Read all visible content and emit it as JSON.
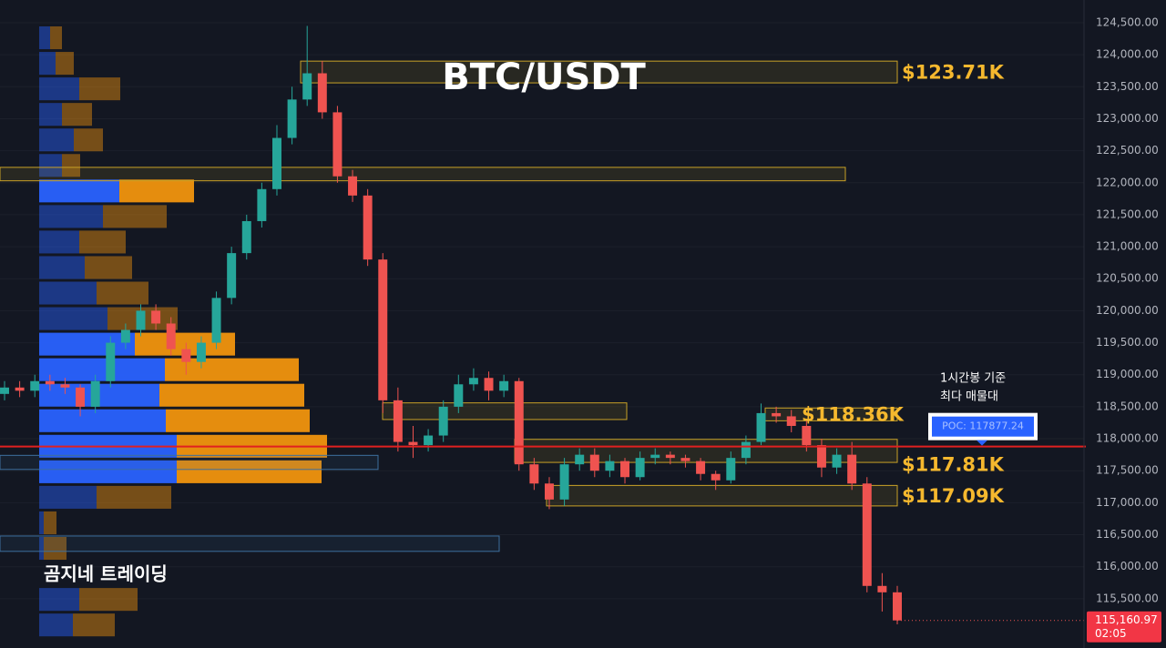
{
  "chart_data": {
    "type": "candlestick",
    "title": "BTC/USDT",
    "watermark": "곰지네 트레이딩",
    "ylim": [
      114730,
      124855
    ],
    "yticks": [
      {
        "value": 115500,
        "label": "115,500.00"
      },
      {
        "value": 116000,
        "label": "116,000.00"
      },
      {
        "value": 116500,
        "label": "116,500.00"
      },
      {
        "value": 117000,
        "label": "117,000.00"
      },
      {
        "value": 117500,
        "label": "117,500.00"
      },
      {
        "value": 118000,
        "label": "118,000.00"
      },
      {
        "value": 118500,
        "label": "118,500.00"
      },
      {
        "value": 119000,
        "label": "119,000.00"
      },
      {
        "value": 119500,
        "label": "119,500.00"
      },
      {
        "value": 120000,
        "label": "120,000.00"
      },
      {
        "value": 120500,
        "label": "120,500.00"
      },
      {
        "value": 121000,
        "label": "121,000.00"
      },
      {
        "value": 121500,
        "label": "121,500.00"
      },
      {
        "value": 122000,
        "label": "122,000.00"
      },
      {
        "value": 122500,
        "label": "122,500.00"
      },
      {
        "value": 123000,
        "label": "123,000.00"
      },
      {
        "value": 123500,
        "label": "123,500.00"
      },
      {
        "value": 124000,
        "label": "124,000.00"
      },
      {
        "value": 124500,
        "label": "124,500.00"
      }
    ],
    "up_color": "#26a69a",
    "down_color": "#ef5350",
    "candles": [
      [
        118700,
        118900,
        118600,
        118800
      ],
      [
        118800,
        118900,
        118650,
        118750
      ],
      [
        118750,
        119000,
        118650,
        118900
      ],
      [
        118900,
        119000,
        118750,
        118850
      ],
      [
        118850,
        118950,
        118700,
        118800
      ],
      [
        118800,
        118850,
        118350,
        118500
      ],
      [
        118500,
        119000,
        118400,
        118900
      ],
      [
        118900,
        119600,
        118800,
        119500
      ],
      [
        119500,
        119800,
        119400,
        119700
      ],
      [
        119700,
        120100,
        119600,
        120000
      ],
      [
        120000,
        120100,
        119700,
        119800
      ],
      [
        119800,
        119900,
        119300,
        119400
      ],
      [
        119400,
        119500,
        119000,
        119200
      ],
      [
        119200,
        119600,
        119100,
        119500
      ],
      [
        119500,
        120300,
        119400,
        120200
      ],
      [
        120200,
        121000,
        120100,
        120900
      ],
      [
        120900,
        121500,
        120800,
        121400
      ],
      [
        121400,
        122000,
        121300,
        121900
      ],
      [
        121900,
        122900,
        121800,
        122700
      ],
      [
        122700,
        123500,
        122600,
        123300
      ],
      [
        123300,
        124450,
        123200,
        123710
      ],
      [
        123710,
        123900,
        123000,
        123100
      ],
      [
        123100,
        123200,
        122000,
        122100
      ],
      [
        122100,
        122200,
        121700,
        121800
      ],
      [
        121800,
        121900,
        120700,
        120800
      ],
      [
        120800,
        120900,
        118400,
        118600
      ],
      [
        118600,
        118800,
        117800,
        117950
      ],
      [
        117950,
        118200,
        117700,
        117900
      ],
      [
        117900,
        118150,
        117800,
        118050
      ],
      [
        118050,
        118600,
        117950,
        118500
      ],
      [
        118500,
        119000,
        118400,
        118850
      ],
      [
        118850,
        119100,
        118750,
        118950
      ],
      [
        118950,
        119050,
        118600,
        118750
      ],
      [
        118750,
        119000,
        118650,
        118900
      ],
      [
        118900,
        118950,
        117500,
        117600
      ],
      [
        117600,
        117700,
        117200,
        117300
      ],
      [
        117300,
        117400,
        116900,
        117050
      ],
      [
        117050,
        117700,
        116950,
        117600
      ],
      [
        117600,
        117850,
        117500,
        117750
      ],
      [
        117750,
        117850,
        117400,
        117500
      ],
      [
        117500,
        117750,
        117400,
        117650
      ],
      [
        117650,
        117700,
        117300,
        117400
      ],
      [
        117400,
        117800,
        117350,
        117700
      ],
      [
        117700,
        117850,
        117600,
        117750
      ],
      [
        117750,
        117800,
        117600,
        117700
      ],
      [
        117700,
        117750,
        117550,
        117650
      ],
      [
        117650,
        117700,
        117350,
        117450
      ],
      [
        117450,
        117500,
        117200,
        117350
      ],
      [
        117350,
        117800,
        117300,
        117700
      ],
      [
        117700,
        118050,
        117600,
        117950
      ],
      [
        117950,
        118550,
        117900,
        118400
      ],
      [
        118400,
        118500,
        118250,
        118350
      ],
      [
        118350,
        118450,
        118100,
        118200
      ],
      [
        118200,
        118300,
        117800,
        117900
      ],
      [
        117900,
        118000,
        117400,
        117550
      ],
      [
        117550,
        117850,
        117450,
        117750
      ],
      [
        117750,
        117950,
        117200,
        117300
      ],
      [
        117300,
        117400,
        115600,
        115700
      ],
      [
        115700,
        115900,
        115300,
        115600
      ],
      [
        115600,
        115700,
        115100,
        115160.97
      ]
    ],
    "volume_profile": {
      "buy_color": "#2962ff",
      "sell_color": "#f0930e",
      "buy": [
        12,
        18,
        44,
        25,
        38,
        25,
        88,
        70,
        44,
        50,
        63,
        75,
        105,
        138,
        132,
        139,
        151,
        151,
        63,
        5,
        5,
        0,
        44,
        37
      ],
      "sell": [
        13,
        20,
        45,
        33,
        32,
        20,
        82,
        70,
        51,
        52,
        57,
        77,
        110,
        147,
        159,
        158,
        165,
        159,
        82,
        14,
        25,
        0,
        64,
        46
      ]
    },
    "zones": [
      {
        "low": 123560,
        "high": 123900,
        "color": "#c9a227"
      },
      {
        "low": 122030,
        "high": 122240,
        "color": "#c9a227"
      },
      {
        "low": 118300,
        "high": 118560,
        "color": "#c9a227"
      },
      {
        "low": 118280,
        "high": 118480,
        "color": "#c9a227"
      },
      {
        "low": 117630,
        "high": 117990,
        "color": "#c9a227"
      },
      {
        "low": 116950,
        "high": 117270,
        "color": "#c9a227"
      },
      {
        "low": 117520,
        "high": 117740,
        "color": "#3d6f9e"
      },
      {
        "low": 116240,
        "high": 116480,
        "color": "#3d6f9e"
      }
    ],
    "level_labels": [
      {
        "value": 123710,
        "label": "$123.71K"
      },
      {
        "value": 118360,
        "label": "$118.36K"
      },
      {
        "value": 117810,
        "label": "$117.81K"
      },
      {
        "value": 117090,
        "label": "$117.09K"
      }
    ],
    "poc": {
      "value": 117877.24,
      "label": "POC: 117877.24",
      "note": [
        "1시간봉 기준",
        "최다 매물대"
      ],
      "color": "#e02020"
    },
    "last_price": {
      "value": 115160.97,
      "label": "115,160.97",
      "countdown": "02:05"
    }
  }
}
